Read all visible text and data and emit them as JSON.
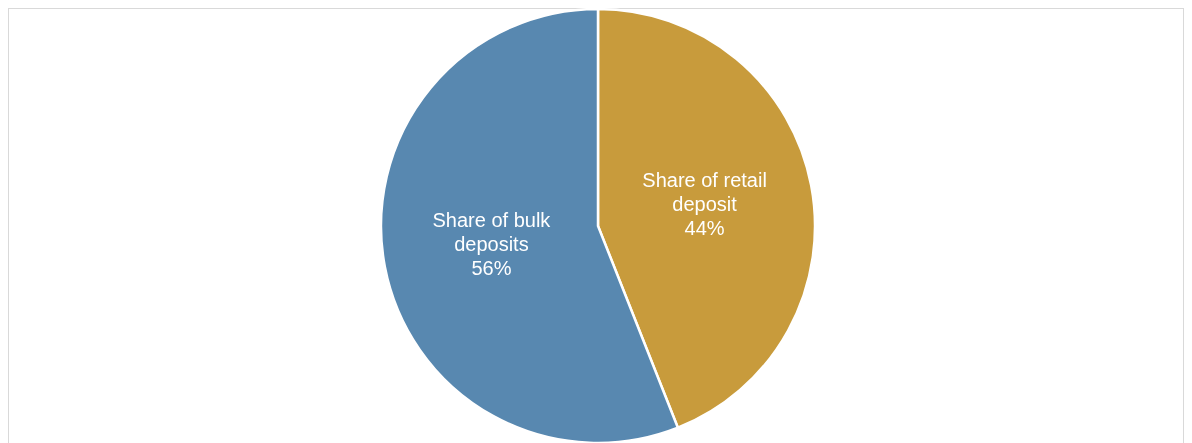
{
  "chart_data": {
    "type": "pie",
    "categories": [
      "Share of retail deposit",
      "Share of bulk deposits"
    ],
    "values": [
      44,
      56
    ],
    "colors": [
      "#c89b3c",
      "#5888b0"
    ],
    "value_labels": [
      "44%",
      "56%"
    ]
  }
}
